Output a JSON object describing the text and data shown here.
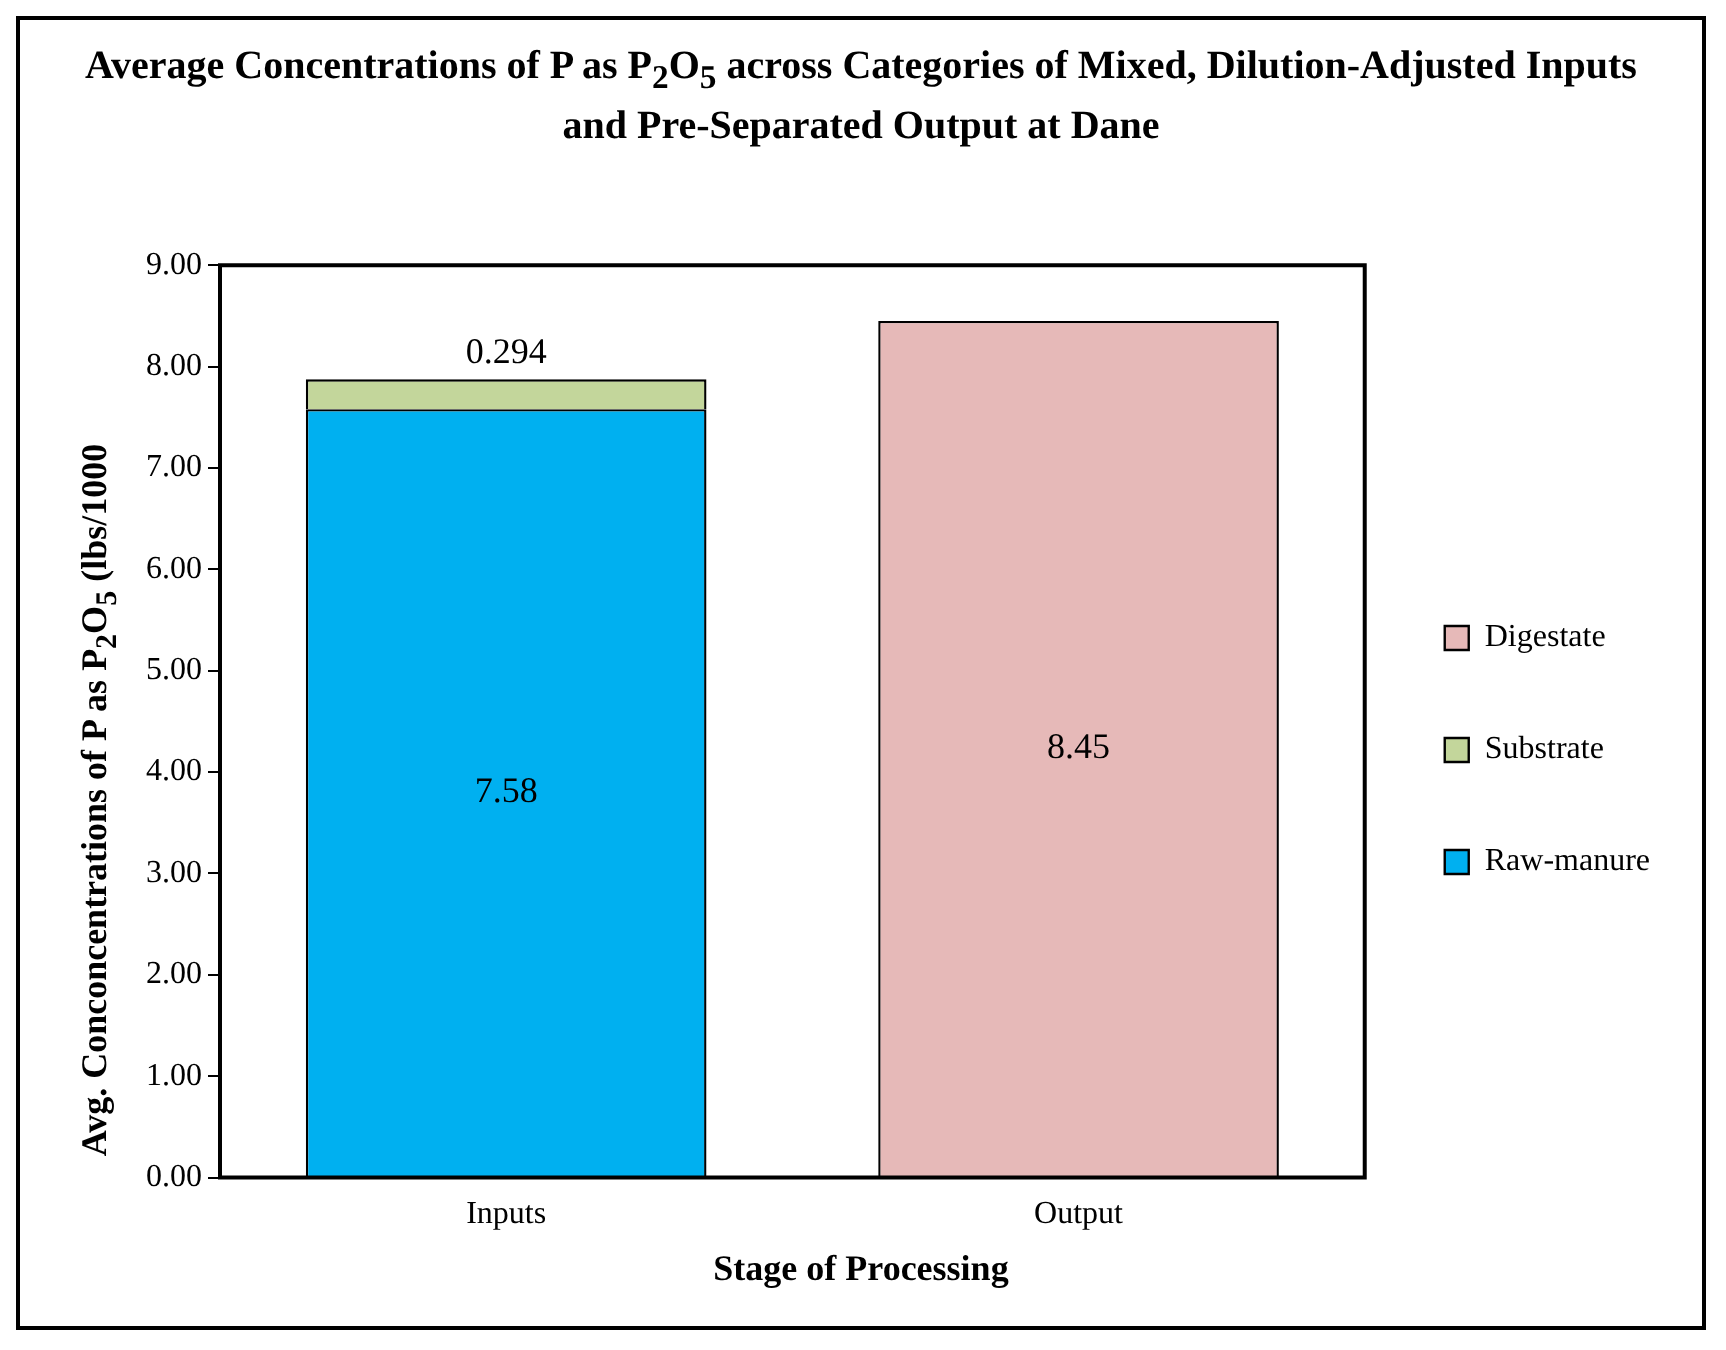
{
  "chart_data": {
    "type": "bar",
    "title": "Average Concentrations of P as P$_{2}$O$_{5}$ across Categories of Mixed, Dilution-Adjusted Inputs and Pre-Separated Output at Dane",
    "xlabel": "Stage of Processing",
    "ylabel": "Avg. Conconcentrations of P as P$_{2}$O$_{5}$ (lbs/1000",
    "categories": [
      "Inputs",
      "Output"
    ],
    "stacked": true,
    "series": [
      {
        "name": "Raw-manure",
        "color": "#00b0f0",
        "values": [
          7.58,
          null
        ]
      },
      {
        "name": "Substrate",
        "color": "#c3d69b",
        "values": [
          0.294,
          null
        ]
      },
      {
        "name": "Digestate",
        "color": "#e6b9b8",
        "values": [
          null,
          8.45
        ]
      }
    ],
    "ylim": [
      0,
      9
    ],
    "yticks": [
      {
        "value": 0,
        "label": "0.00"
      },
      {
        "value": 1,
        "label": "1.00"
      },
      {
        "value": 2,
        "label": "2.00"
      },
      {
        "value": 3,
        "label": "3.00"
      },
      {
        "value": 4,
        "label": "4.00"
      },
      {
        "value": 5,
        "label": "5.00"
      },
      {
        "value": 6,
        "label": "6.00"
      },
      {
        "value": 7,
        "label": "7.00"
      },
      {
        "value": 8,
        "label": "8.00"
      },
      {
        "value": 9,
        "label": "9.00"
      }
    ],
    "grid": false,
    "legend": "right",
    "data_labels": true
  }
}
